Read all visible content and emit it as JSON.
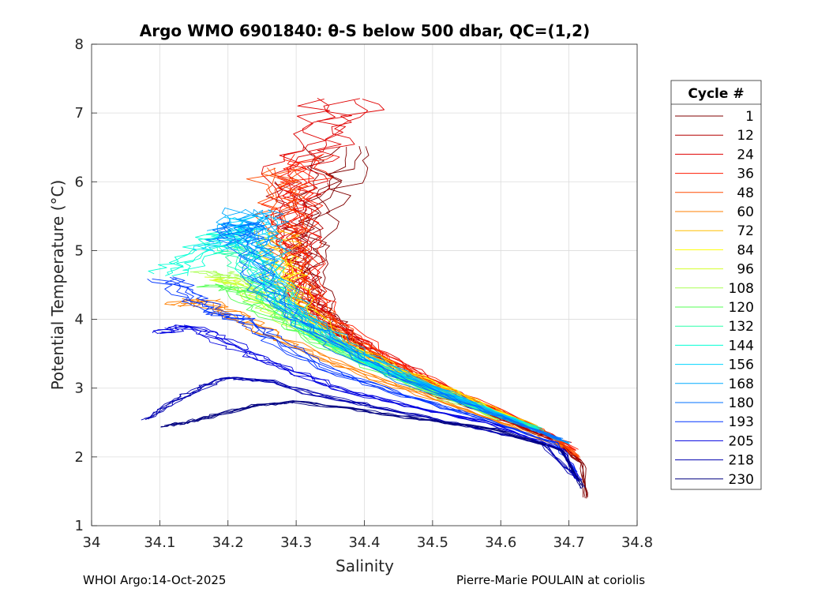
{
  "chart_data": {
    "type": "line",
    "title": "Argo WMO 6901840: θ-S below 500 dbar,  QC=(1,2)",
    "xlabel": "Salinity",
    "ylabel": "Potential Temperature (°C)",
    "xlim": [
      34.0,
      34.8
    ],
    "ylim": [
      1,
      8
    ],
    "xticks": [
      "34",
      "34.1",
      "34.2",
      "34.3",
      "34.4",
      "34.5",
      "34.6",
      "34.7",
      "34.8"
    ],
    "yticks": [
      "1",
      "2",
      "3",
      "4",
      "5",
      "6",
      "7",
      "8"
    ],
    "grid": true,
    "legend": {
      "title": "Cycle #",
      "placement": "right-outside",
      "entries": [
        {
          "label": "1",
          "color": "#800000"
        },
        {
          "label": "12",
          "color": "#b30000"
        },
        {
          "label": "24",
          "color": "#e00000"
        },
        {
          "label": "36",
          "color": "#ff1a00"
        },
        {
          "label": "48",
          "color": "#ff4a00"
        },
        {
          "label": "60",
          "color": "#ff7f00"
        },
        {
          "label": "72",
          "color": "#ffbf00"
        },
        {
          "label": "84",
          "color": "#ffff00"
        },
        {
          "label": "96",
          "color": "#d4ff2b"
        },
        {
          "label": "108",
          "color": "#aaff55"
        },
        {
          "label": "120",
          "color": "#55ff55"
        },
        {
          "label": "132",
          "color": "#2bffaa"
        },
        {
          "label": "144",
          "color": "#00ffd4"
        },
        {
          "label": "156",
          "color": "#00d4ff"
        },
        {
          "label": "168",
          "color": "#00aaff"
        },
        {
          "label": "180",
          "color": "#0070ff"
        },
        {
          "label": "193",
          "color": "#0035ff"
        },
        {
          "label": "205",
          "color": "#0000e0"
        },
        {
          "label": "218",
          "color": "#0000b0"
        },
        {
          "label": "230",
          "color": "#000080"
        }
      ]
    },
    "series": [
      {
        "name": "1",
        "color": "#800000",
        "points": [
          [
            34.37,
            6.5
          ],
          [
            34.34,
            5.9
          ],
          [
            34.32,
            5.2
          ],
          [
            34.315,
            4.8
          ],
          [
            34.33,
            4.2
          ],
          [
            34.36,
            3.9
          ],
          [
            34.4,
            3.5
          ],
          [
            34.5,
            2.95
          ],
          [
            34.6,
            2.55
          ],
          [
            34.68,
            2.25
          ],
          [
            34.72,
            1.9
          ],
          [
            34.725,
            1.4
          ]
        ]
      },
      {
        "name": "12",
        "color": "#b30000",
        "points": [
          [
            34.3,
            6.0
          ],
          [
            34.295,
            5.4
          ],
          [
            34.305,
            4.9
          ],
          [
            34.315,
            4.4
          ],
          [
            34.34,
            4.0
          ],
          [
            34.4,
            3.55
          ],
          [
            34.5,
            3.0
          ],
          [
            34.6,
            2.55
          ],
          [
            34.68,
            2.25
          ],
          [
            34.715,
            1.95
          ]
        ]
      },
      {
        "name": "24",
        "color": "#e00000",
        "points": [
          [
            34.375,
            7.2
          ],
          [
            34.34,
            6.7
          ],
          [
            34.3,
            6.2
          ],
          [
            34.29,
            5.6
          ],
          [
            34.3,
            5.0
          ],
          [
            34.315,
            4.4
          ],
          [
            34.34,
            4.0
          ],
          [
            34.42,
            3.5
          ],
          [
            34.52,
            3.0
          ],
          [
            34.62,
            2.55
          ],
          [
            34.7,
            2.2
          ]
        ]
      },
      {
        "name": "36",
        "color": "#ff1a00",
        "points": [
          [
            34.32,
            6.4
          ],
          [
            34.3,
            6.0
          ],
          [
            34.295,
            5.5
          ],
          [
            34.305,
            4.9
          ],
          [
            34.325,
            4.3
          ],
          [
            34.36,
            3.9
          ],
          [
            34.44,
            3.4
          ],
          [
            34.54,
            2.9
          ],
          [
            34.64,
            2.5
          ],
          [
            34.71,
            2.1
          ]
        ]
      },
      {
        "name": "48",
        "color": "#ff4a00",
        "points": [
          [
            34.27,
            6.2
          ],
          [
            34.28,
            5.7
          ],
          [
            34.29,
            5.1
          ],
          [
            34.3,
            4.6
          ],
          [
            34.32,
            4.2
          ],
          [
            34.38,
            3.7
          ],
          [
            34.46,
            3.25
          ],
          [
            34.56,
            2.8
          ],
          [
            34.66,
            2.4
          ],
          [
            34.715,
            2.0
          ]
        ]
      },
      {
        "name": "60",
        "color": "#ff7f00",
        "points": [
          [
            34.13,
            4.2
          ],
          [
            34.16,
            4.3
          ],
          [
            34.2,
            4.1
          ],
          [
            34.24,
            3.9
          ],
          [
            34.3,
            3.6
          ],
          [
            34.4,
            3.2
          ],
          [
            34.5,
            2.85
          ],
          [
            34.6,
            2.5
          ],
          [
            34.69,
            2.15
          ]
        ]
      },
      {
        "name": "72",
        "color": "#ffbf00",
        "points": [
          [
            34.265,
            5.3
          ],
          [
            34.27,
            4.9
          ],
          [
            34.285,
            4.5
          ],
          [
            34.31,
            4.1
          ],
          [
            34.36,
            3.7
          ],
          [
            34.45,
            3.25
          ],
          [
            34.55,
            2.85
          ],
          [
            34.65,
            2.45
          ]
        ]
      },
      {
        "name": "84",
        "color": "#ffff00",
        "points": [
          [
            34.28,
            4.9
          ],
          [
            34.29,
            4.5
          ],
          [
            34.31,
            4.1
          ],
          [
            34.36,
            3.7
          ],
          [
            34.44,
            3.3
          ],
          [
            34.54,
            2.9
          ],
          [
            34.64,
            2.45
          ]
        ]
      },
      {
        "name": "96",
        "color": "#d4ff2b",
        "points": [
          [
            34.19,
            4.6
          ],
          [
            34.22,
            4.5
          ],
          [
            34.26,
            4.2
          ],
          [
            34.32,
            3.8
          ],
          [
            34.4,
            3.4
          ],
          [
            34.5,
            2.95
          ],
          [
            34.62,
            2.5
          ]
        ]
      },
      {
        "name": "108",
        "color": "#aaff55",
        "points": [
          [
            34.17,
            4.7
          ],
          [
            34.21,
            4.6
          ],
          [
            34.25,
            4.3
          ],
          [
            34.3,
            3.95
          ],
          [
            34.38,
            3.5
          ],
          [
            34.48,
            3.0
          ],
          [
            34.6,
            2.55
          ]
        ]
      },
      {
        "name": "120",
        "color": "#55ff55",
        "points": [
          [
            34.18,
            4.5
          ],
          [
            34.22,
            4.4
          ],
          [
            34.26,
            4.1
          ],
          [
            34.32,
            3.75
          ],
          [
            34.41,
            3.3
          ],
          [
            34.52,
            2.9
          ],
          [
            34.64,
            2.45
          ]
        ]
      },
      {
        "name": "132",
        "color": "#2bffaa",
        "points": [
          [
            34.2,
            5.1
          ],
          [
            34.22,
            4.9
          ],
          [
            34.25,
            4.5
          ],
          [
            34.29,
            4.1
          ],
          [
            34.36,
            3.6
          ],
          [
            34.46,
            3.1
          ],
          [
            34.58,
            2.65
          ]
        ]
      },
      {
        "name": "144",
        "color": "#00ffd4",
        "points": [
          [
            34.11,
            4.65
          ],
          [
            34.15,
            4.9
          ],
          [
            34.19,
            5.2
          ],
          [
            34.22,
            5.3
          ],
          [
            34.24,
            4.8
          ],
          [
            34.27,
            4.3
          ],
          [
            34.33,
            3.8
          ],
          [
            34.42,
            3.3
          ],
          [
            34.54,
            2.85
          ],
          [
            34.66,
            2.4
          ]
        ]
      },
      {
        "name": "156",
        "color": "#00d4ff",
        "points": [
          [
            34.18,
            5.0
          ],
          [
            34.21,
            5.2
          ],
          [
            34.24,
            5.5
          ],
          [
            34.25,
            5.0
          ],
          [
            34.27,
            4.5
          ],
          [
            34.32,
            3.95
          ],
          [
            34.4,
            3.45
          ],
          [
            34.51,
            2.95
          ],
          [
            34.63,
            2.5
          ]
        ]
      },
      {
        "name": "168",
        "color": "#00aaff",
        "points": [
          [
            34.21,
            5.3
          ],
          [
            34.24,
            5.6
          ],
          [
            34.25,
            5.2
          ],
          [
            34.26,
            4.6
          ],
          [
            34.3,
            4.1
          ],
          [
            34.38,
            3.6
          ],
          [
            34.48,
            3.1
          ],
          [
            34.6,
            2.6
          ],
          [
            34.7,
            2.2
          ]
        ]
      },
      {
        "name": "180",
        "color": "#0070ff",
        "points": [
          [
            34.2,
            5.1
          ],
          [
            34.22,
            5.4
          ],
          [
            34.235,
            5.0
          ],
          [
            34.25,
            4.5
          ],
          [
            34.29,
            4.05
          ],
          [
            34.36,
            3.6
          ],
          [
            34.46,
            3.1
          ],
          [
            34.58,
            2.65
          ],
          [
            34.69,
            2.25
          ]
        ]
      },
      {
        "name": "193",
        "color": "#0035ff",
        "points": [
          [
            34.11,
            4.6
          ],
          [
            34.15,
            4.3
          ],
          [
            34.18,
            4.1
          ],
          [
            34.22,
            4.0
          ],
          [
            34.27,
            3.7
          ],
          [
            34.34,
            3.3
          ],
          [
            34.44,
            2.95
          ],
          [
            34.56,
            2.6
          ],
          [
            34.68,
            2.2
          ],
          [
            34.71,
            1.8
          ]
        ]
      },
      {
        "name": "205",
        "color": "#0000e0",
        "points": [
          [
            34.1,
            3.8
          ],
          [
            34.14,
            3.9
          ],
          [
            34.18,
            3.75
          ],
          [
            34.22,
            3.55
          ],
          [
            34.28,
            3.3
          ],
          [
            34.36,
            3.0
          ],
          [
            34.46,
            2.75
          ],
          [
            34.58,
            2.5
          ],
          [
            34.69,
            2.1
          ],
          [
            34.715,
            1.65
          ]
        ]
      },
      {
        "name": "218",
        "color": "#0000b0",
        "points": [
          [
            34.08,
            2.55
          ],
          [
            34.12,
            2.8
          ],
          [
            34.16,
            3.0
          ],
          [
            34.2,
            3.15
          ],
          [
            34.26,
            3.1
          ],
          [
            34.33,
            2.9
          ],
          [
            34.43,
            2.7
          ],
          [
            34.55,
            2.45
          ],
          [
            34.66,
            2.2
          ],
          [
            34.71,
            1.7
          ]
        ]
      },
      {
        "name": "230",
        "color": "#000080",
        "points": [
          [
            34.105,
            2.45
          ],
          [
            34.14,
            2.5
          ],
          [
            34.18,
            2.6
          ],
          [
            34.24,
            2.75
          ],
          [
            34.3,
            2.8
          ],
          [
            34.38,
            2.7
          ],
          [
            34.48,
            2.55
          ],
          [
            34.59,
            2.4
          ],
          [
            34.69,
            2.1
          ],
          [
            34.72,
            1.55
          ]
        ]
      }
    ]
  },
  "footer": {
    "left": "WHOI Argo:14-Oct-2025",
    "right": "Pierre-Marie POULAIN at coriolis"
  }
}
